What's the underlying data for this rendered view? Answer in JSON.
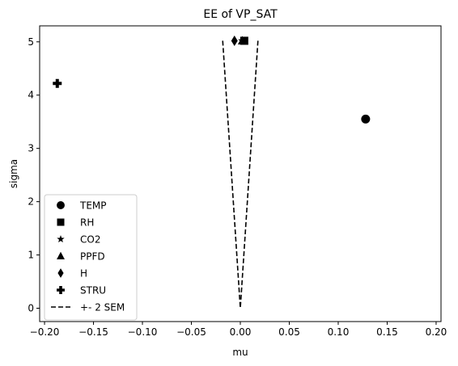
{
  "chart_data": {
    "type": "scatter",
    "title": "EE of VP_SAT",
    "xlabel": "mu",
    "ylabel": "sigma",
    "xlim": [
      -0.205,
      0.205
    ],
    "ylim": [
      -0.25,
      5.3
    ],
    "x_ticks": [
      -0.2,
      -0.15,
      -0.1,
      -0.05,
      0.0,
      0.05,
      0.1,
      0.15,
      0.2
    ],
    "x_tick_labels": [
      "−0.20",
      "−0.15",
      "−0.10",
      "−0.05",
      "0.00",
      "0.05",
      "0.10",
      "0.15",
      "0.20"
    ],
    "y_ticks": [
      0,
      1,
      2,
      3,
      4,
      5
    ],
    "y_tick_labels": [
      "0",
      "1",
      "2",
      "3",
      "4",
      "5"
    ],
    "grid": false,
    "legend_position": "lower-left",
    "series": [
      {
        "name": "TEMP",
        "marker": "circle",
        "color": "#000000",
        "points": [
          {
            "x": 0.128,
            "y": 3.55
          }
        ]
      },
      {
        "name": "RH",
        "marker": "square",
        "color": "#000000",
        "points": [
          {
            "x": 0.004,
            "y": 5.02
          }
        ]
      },
      {
        "name": "CO2",
        "marker": "star",
        "color": "#000000",
        "points": [
          {
            "x": 0.002,
            "y": 5.02
          }
        ]
      },
      {
        "name": "PPFD",
        "marker": "triangle",
        "color": "#000000",
        "points": [
          {
            "x": 0.002,
            "y": 5.02
          }
        ]
      },
      {
        "name": "H",
        "marker": "diamond",
        "color": "#000000",
        "points": [
          {
            "x": -0.006,
            "y": 5.02
          }
        ]
      },
      {
        "name": "STRU",
        "marker": "plus",
        "color": "#000000",
        "points": [
          {
            "x": -0.187,
            "y": 4.22
          }
        ]
      }
    ],
    "sem_line": {
      "name": "+- 2 SEM",
      "style": "dashed",
      "color": "#000000",
      "left": [
        {
          "x": -0.018,
          "y": 5.02
        },
        {
          "x": 0.0,
          "y": 0.0
        }
      ],
      "right": [
        {
          "x": 0.018,
          "y": 5.02
        },
        {
          "x": 0.0,
          "y": 0.0
        }
      ]
    }
  }
}
